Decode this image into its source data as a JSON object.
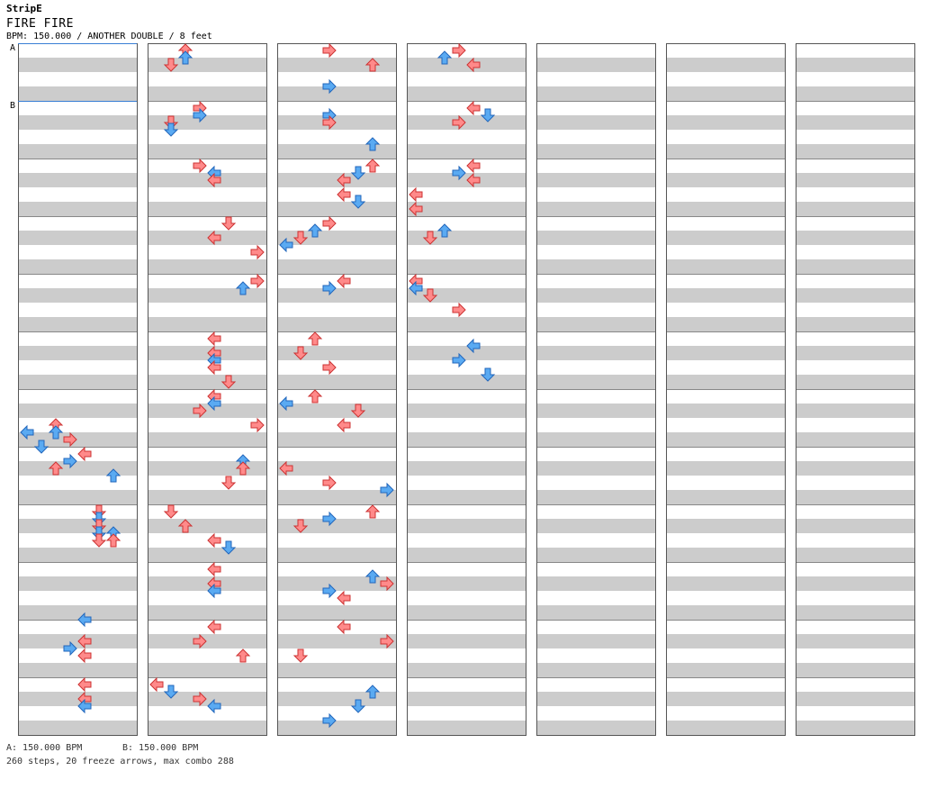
{
  "header": {
    "artist": "StripE",
    "song": "FIRE FIRE",
    "info": "BPM: 150.000 / ANOTHER DOUBLE / 8 feet"
  },
  "markers": [
    {
      "label": "A",
      "measure": 0,
      "beat": 0
    },
    {
      "label": "B",
      "measure": 1,
      "beat": 0
    }
  ],
  "footer": {
    "bpm_a": "A: 150.000 BPM",
    "bpm_b": "B: 150.000 BPM",
    "stats": "260 steps, 20 freeze arrows, max combo 288"
  },
  "colors": {
    "stripe": "#cccccc",
    "background": "#ffffff",
    "border": "#555555",
    "marker_line": "#3a7fd5",
    "arrow_quarter": "#ff8a8a",
    "arrow_eighth": "#5aaaf2",
    "freeze": "#c4f5c4"
  },
  "chart_data": {
    "type": "step_chart",
    "lanes": [
      "P1 Left",
      "P1 Down",
      "P1 Up",
      "P1 Right",
      "P2 Left",
      "P2 Down",
      "P2 Up",
      "P2 Right"
    ],
    "columns": 7,
    "measures_per_column": 12,
    "beats_per_measure": 4,
    "notes": [
      [
        6,
        2.0,
        2
      ],
      [
        6,
        2.5,
        2
      ],
      [
        6,
        2.5,
        0
      ],
      [
        6,
        3.0,
        3
      ],
      [
        6,
        3.5,
        1
      ],
      [
        7,
        0.0,
        4
      ],
      [
        7,
        0.5,
        3
      ],
      [
        7,
        1.0,
        2
      ],
      [
        7,
        1.5,
        6
      ],
      [
        8,
        0.0,
        5
      ],
      [
        8,
        0.5,
        5
      ],
      [
        8,
        1.0,
        5
      ],
      [
        8,
        1.5,
        5
      ],
      [
        8,
        1.5,
        6
      ],
      [
        8,
        2.0,
        5
      ],
      [
        8,
        2.0,
        6
      ],
      [
        9,
        3.5,
        4
      ],
      [
        10,
        1.0,
        4
      ],
      [
        10,
        1.5,
        3
      ],
      [
        10,
        2.0,
        4
      ],
      [
        11,
        0.0,
        4
      ],
      [
        11,
        1.0,
        4
      ],
      [
        11,
        1.5,
        4
      ],
      [
        12,
        0.0,
        2
      ],
      [
        12,
        0.5,
        2
      ],
      [
        12,
        1.0,
        1
      ],
      [
        13,
        0.0,
        3
      ],
      [
        13,
        0.5,
        3
      ],
      [
        13,
        1.0,
        1
      ],
      [
        13,
        1.5,
        1
      ],
      [
        14,
        0.0,
        3
      ],
      [
        14,
        0.5,
        4
      ],
      [
        14,
        1.0,
        4
      ],
      [
        15,
        0.0,
        5
      ],
      [
        15,
        1.0,
        4
      ],
      [
        15,
        2.0,
        7
      ],
      [
        16,
        0.0,
        7
      ],
      [
        16,
        0.5,
        6
      ],
      [
        17,
        0.0,
        4
      ],
      [
        17,
        1.0,
        4
      ],
      [
        17,
        1.5,
        4
      ],
      [
        17,
        2.0,
        4
      ],
      [
        17,
        3.0,
        5
      ],
      [
        18,
        0.0,
        4
      ],
      [
        18,
        0.5,
        4
      ],
      [
        18,
        1.0,
        3
      ],
      [
        18,
        2.0,
        7
      ],
      [
        19,
        0.5,
        6
      ],
      [
        19,
        1.0,
        6
      ],
      [
        19,
        2.0,
        5
      ],
      [
        20,
        0.0,
        1
      ],
      [
        20,
        1.0,
        2
      ],
      [
        20,
        2.0,
        4
      ],
      [
        20,
        2.5,
        5
      ],
      [
        21,
        0.0,
        4
      ],
      [
        21,
        1.0,
        4
      ],
      [
        21,
        1.5,
        4
      ],
      [
        22,
        0.0,
        4
      ],
      [
        22,
        1.0,
        3
      ],
      [
        22,
        2.0,
        6
      ],
      [
        23,
        0.0,
        0
      ],
      [
        23,
        0.5,
        1
      ],
      [
        23,
        1.0,
        3
      ],
      [
        23,
        1.5,
        4
      ],
      [
        24,
        0.0,
        3
      ],
      [
        24,
        1.0,
        6
      ],
      [
        24,
        2.5,
        3
      ],
      [
        25,
        0.5,
        3
      ],
      [
        25,
        1.0,
        3
      ],
      [
        25,
        2.5,
        6
      ],
      [
        26,
        0.0,
        6
      ],
      [
        26,
        0.5,
        5
      ],
      [
        26,
        1.0,
        4
      ],
      [
        26,
        2.0,
        4
      ],
      [
        26,
        2.5,
        5
      ],
      [
        27,
        0.0,
        3
      ],
      [
        27,
        0.5,
        2
      ],
      [
        27,
        1.0,
        1
      ],
      [
        27,
        1.5,
        0
      ],
      [
        28,
        0.0,
        4
      ],
      [
        28,
        0.5,
        3
      ],
      [
        29,
        0.0,
        2
      ],
      [
        29,
        1.0,
        1
      ],
      [
        29,
        2.0,
        3
      ],
      [
        30,
        0.0,
        2
      ],
      [
        30,
        0.5,
        0
      ],
      [
        30,
        1.0,
        5
      ],
      [
        30,
        2.0,
        4
      ],
      [
        31,
        1.0,
        0
      ],
      [
        31,
        2.0,
        3
      ],
      [
        31,
        2.5,
        7
      ],
      [
        32,
        0.0,
        6
      ],
      [
        32,
        0.5,
        3
      ],
      [
        32,
        1.0,
        1
      ],
      [
        33,
        0.5,
        6
      ],
      [
        33,
        1.0,
        7
      ],
      [
        33,
        1.5,
        3
      ],
      [
        33,
        2.0,
        4
      ],
      [
        34,
        0.0,
        4
      ],
      [
        34,
        1.0,
        7
      ],
      [
        34,
        2.0,
        1
      ],
      [
        35,
        0.5,
        6
      ],
      [
        35,
        1.5,
        5
      ],
      [
        35,
        2.5,
        3
      ],
      [
        36,
        0.0,
        3
      ],
      [
        36,
        0.5,
        2
      ],
      [
        36,
        1.0,
        4
      ],
      [
        37,
        0.0,
        4
      ],
      [
        37,
        0.5,
        5
      ],
      [
        37,
        1.0,
        3
      ],
      [
        38,
        0.0,
        4
      ],
      [
        38,
        0.5,
        3
      ],
      [
        38,
        1.0,
        4
      ],
      [
        38,
        2.0,
        0
      ],
      [
        38,
        3.0,
        0
      ],
      [
        39,
        0.5,
        2
      ],
      [
        39,
        1.0,
        1
      ],
      [
        40,
        0.0,
        0
      ],
      [
        40,
        0.5,
        0
      ],
      [
        40,
        1.0,
        1
      ],
      [
        40,
        2.0,
        3
      ],
      [
        41,
        0.5,
        4
      ],
      [
        41,
        1.5,
        3
      ],
      [
        41,
        2.5,
        5
      ]
    ],
    "freeze_arrows": 20,
    "total_steps": 260,
    "max_combo": 288,
    "bpm": 150.0
  }
}
